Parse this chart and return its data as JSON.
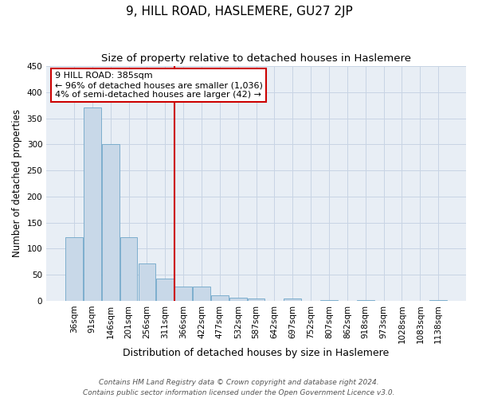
{
  "title": "9, HILL ROAD, HASLEMERE, GU27 2JP",
  "subtitle": "Size of property relative to detached houses in Haslemere",
  "xlabel": "Distribution of detached houses by size in Haslemere",
  "ylabel": "Number of detached properties",
  "categories": [
    "36sqm",
    "91sqm",
    "146sqm",
    "201sqm",
    "256sqm",
    "311sqm",
    "366sqm",
    "422sqm",
    "477sqm",
    "532sqm",
    "587sqm",
    "642sqm",
    "697sqm",
    "752sqm",
    "807sqm",
    "862sqm",
    "918sqm",
    "973sqm",
    "1028sqm",
    "1083sqm",
    "1138sqm"
  ],
  "values": [
    122,
    370,
    301,
    122,
    71,
    42,
    27,
    27,
    10,
    6,
    5,
    0,
    4,
    0,
    2,
    0,
    1,
    0,
    0,
    0,
    1
  ],
  "bar_color": "#c8d8e8",
  "bar_edge_color": "#6ea6c8",
  "grid_color": "#c8d4e4",
  "bg_color": "#e8eef5",
  "vline_color": "#cc0000",
  "vline_x_data": 5.5,
  "annotation_text": "9 HILL ROAD: 385sqm\n← 96% of detached houses are smaller (1,036)\n4% of semi-detached houses are larger (42) →",
  "annotation_box_color": "#ffffff",
  "annotation_box_edge": "#cc0000",
  "footer": "Contains HM Land Registry data © Crown copyright and database right 2024.\nContains public sector information licensed under the Open Government Licence v3.0.",
  "ylim": [
    0,
    450
  ],
  "yticks": [
    0,
    50,
    100,
    150,
    200,
    250,
    300,
    350,
    400,
    450
  ],
  "title_fontsize": 11,
  "subtitle_fontsize": 9.5,
  "xlabel_fontsize": 9,
  "ylabel_fontsize": 8.5,
  "tick_fontsize": 7.5,
  "annotation_fontsize": 8,
  "footer_fontsize": 6.5
}
